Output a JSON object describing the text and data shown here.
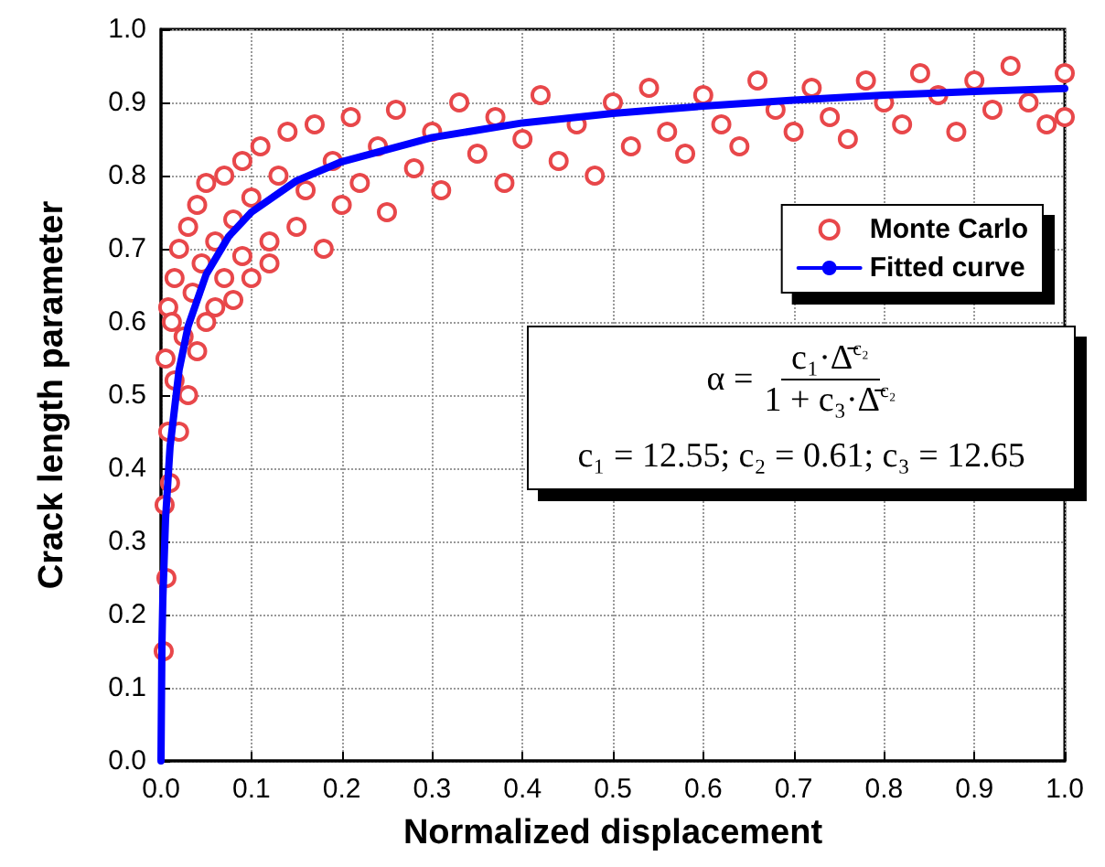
{
  "chart_data": {
    "type": "scatter",
    "xlabel": "Normalized displacement",
    "ylabel": "Crack length parameter",
    "xlim": [
      0,
      1
    ],
    "ylim": [
      0,
      1
    ],
    "xticks": [
      {
        "value": 0,
        "label": "0.0"
      },
      0.1,
      0.2,
      0.3,
      0.4,
      0.5,
      0.6,
      0.7,
      0.8,
      0.9,
      {
        "value": 1,
        "label": "1.0"
      }
    ],
    "yticks": [
      {
        "value": 0,
        "label": "0.0"
      },
      0.1,
      0.2,
      0.3,
      0.4,
      0.5,
      0.6,
      0.7,
      0.8,
      0.9,
      {
        "value": 1,
        "label": "1.0"
      }
    ],
    "grid": true,
    "legend": "top right",
    "annotations": [
      "α =",
      "c₁·Δ̄$^{c₂}$",
      "1 + c₃·Δ̄$^{c₂}$",
      "c₁ = 12.55; c₂ = 0.61; c₃ = 12.65"
    ],
    "series": [
      {
        "name": "Monte Carlo",
        "marker": "circle",
        "color": "#e8474a",
        "x": [
          0.003,
          0.004,
          0.005,
          0.006,
          0.008,
          0.008,
          0.01,
          0.012,
          0.015,
          0.015,
          0.02,
          0.02,
          0.025,
          0.03,
          0.03,
          0.035,
          0.04,
          0.04,
          0.045,
          0.05,
          0.05,
          0.06,
          0.06,
          0.07,
          0.07,
          0.08,
          0.08,
          0.09,
          0.09,
          0.1,
          0.1,
          0.11,
          0.12,
          0.12,
          0.13,
          0.14,
          0.15,
          0.16,
          0.17,
          0.18,
          0.19,
          0.2,
          0.21,
          0.22,
          0.24,
          0.25,
          0.26,
          0.28,
          0.3,
          0.31,
          0.33,
          0.35,
          0.37,
          0.38,
          0.4,
          0.42,
          0.44,
          0.46,
          0.48,
          0.5,
          0.52,
          0.54,
          0.56,
          0.58,
          0.6,
          0.62,
          0.64,
          0.66,
          0.68,
          0.7,
          0.72,
          0.74,
          0.76,
          0.78,
          0.8,
          0.82,
          0.84,
          0.86,
          0.88,
          0.9,
          0.92,
          0.94,
          0.96,
          0.98,
          1.0,
          1.0
        ],
        "values": [
          0.15,
          0.35,
          0.55,
          0.25,
          0.62,
          0.45,
          0.38,
          0.6,
          0.52,
          0.66,
          0.45,
          0.7,
          0.58,
          0.5,
          0.73,
          0.64,
          0.56,
          0.76,
          0.68,
          0.6,
          0.79,
          0.71,
          0.62,
          0.66,
          0.8,
          0.74,
          0.63,
          0.82,
          0.69,
          0.66,
          0.77,
          0.84,
          0.71,
          0.68,
          0.8,
          0.86,
          0.73,
          0.78,
          0.87,
          0.7,
          0.82,
          0.76,
          0.88,
          0.79,
          0.84,
          0.75,
          0.89,
          0.81,
          0.86,
          0.78,
          0.9,
          0.83,
          0.88,
          0.79,
          0.85,
          0.91,
          0.82,
          0.87,
          0.8,
          0.9,
          0.84,
          0.92,
          0.86,
          0.83,
          0.91,
          0.87,
          0.84,
          0.93,
          0.89,
          0.86,
          0.92,
          0.88,
          0.85,
          0.93,
          0.9,
          0.87,
          0.94,
          0.91,
          0.86,
          0.93,
          0.89,
          0.95,
          0.9,
          0.87,
          0.94,
          0.88
        ]
      },
      {
        "name": "Fitted curve",
        "type": "line",
        "marker": "none",
        "line_style": "solid",
        "color": "#0000ff",
        "x": [
          0,
          0.001,
          0.002,
          0.005,
          0.01,
          0.02,
          0.03,
          0.05,
          0.075,
          0.1,
          0.15,
          0.2,
          0.3,
          0.4,
          0.5,
          0.6,
          0.7,
          0.8,
          0.9,
          1.0
        ],
        "values": [
          0,
          0.156,
          0.22,
          0.33,
          0.429,
          0.534,
          0.594,
          0.665,
          0.717,
          0.75,
          0.793,
          0.819,
          0.852,
          0.872,
          0.885,
          0.895,
          0.903,
          0.91,
          0.915,
          0.919
        ]
      }
    ]
  }
}
